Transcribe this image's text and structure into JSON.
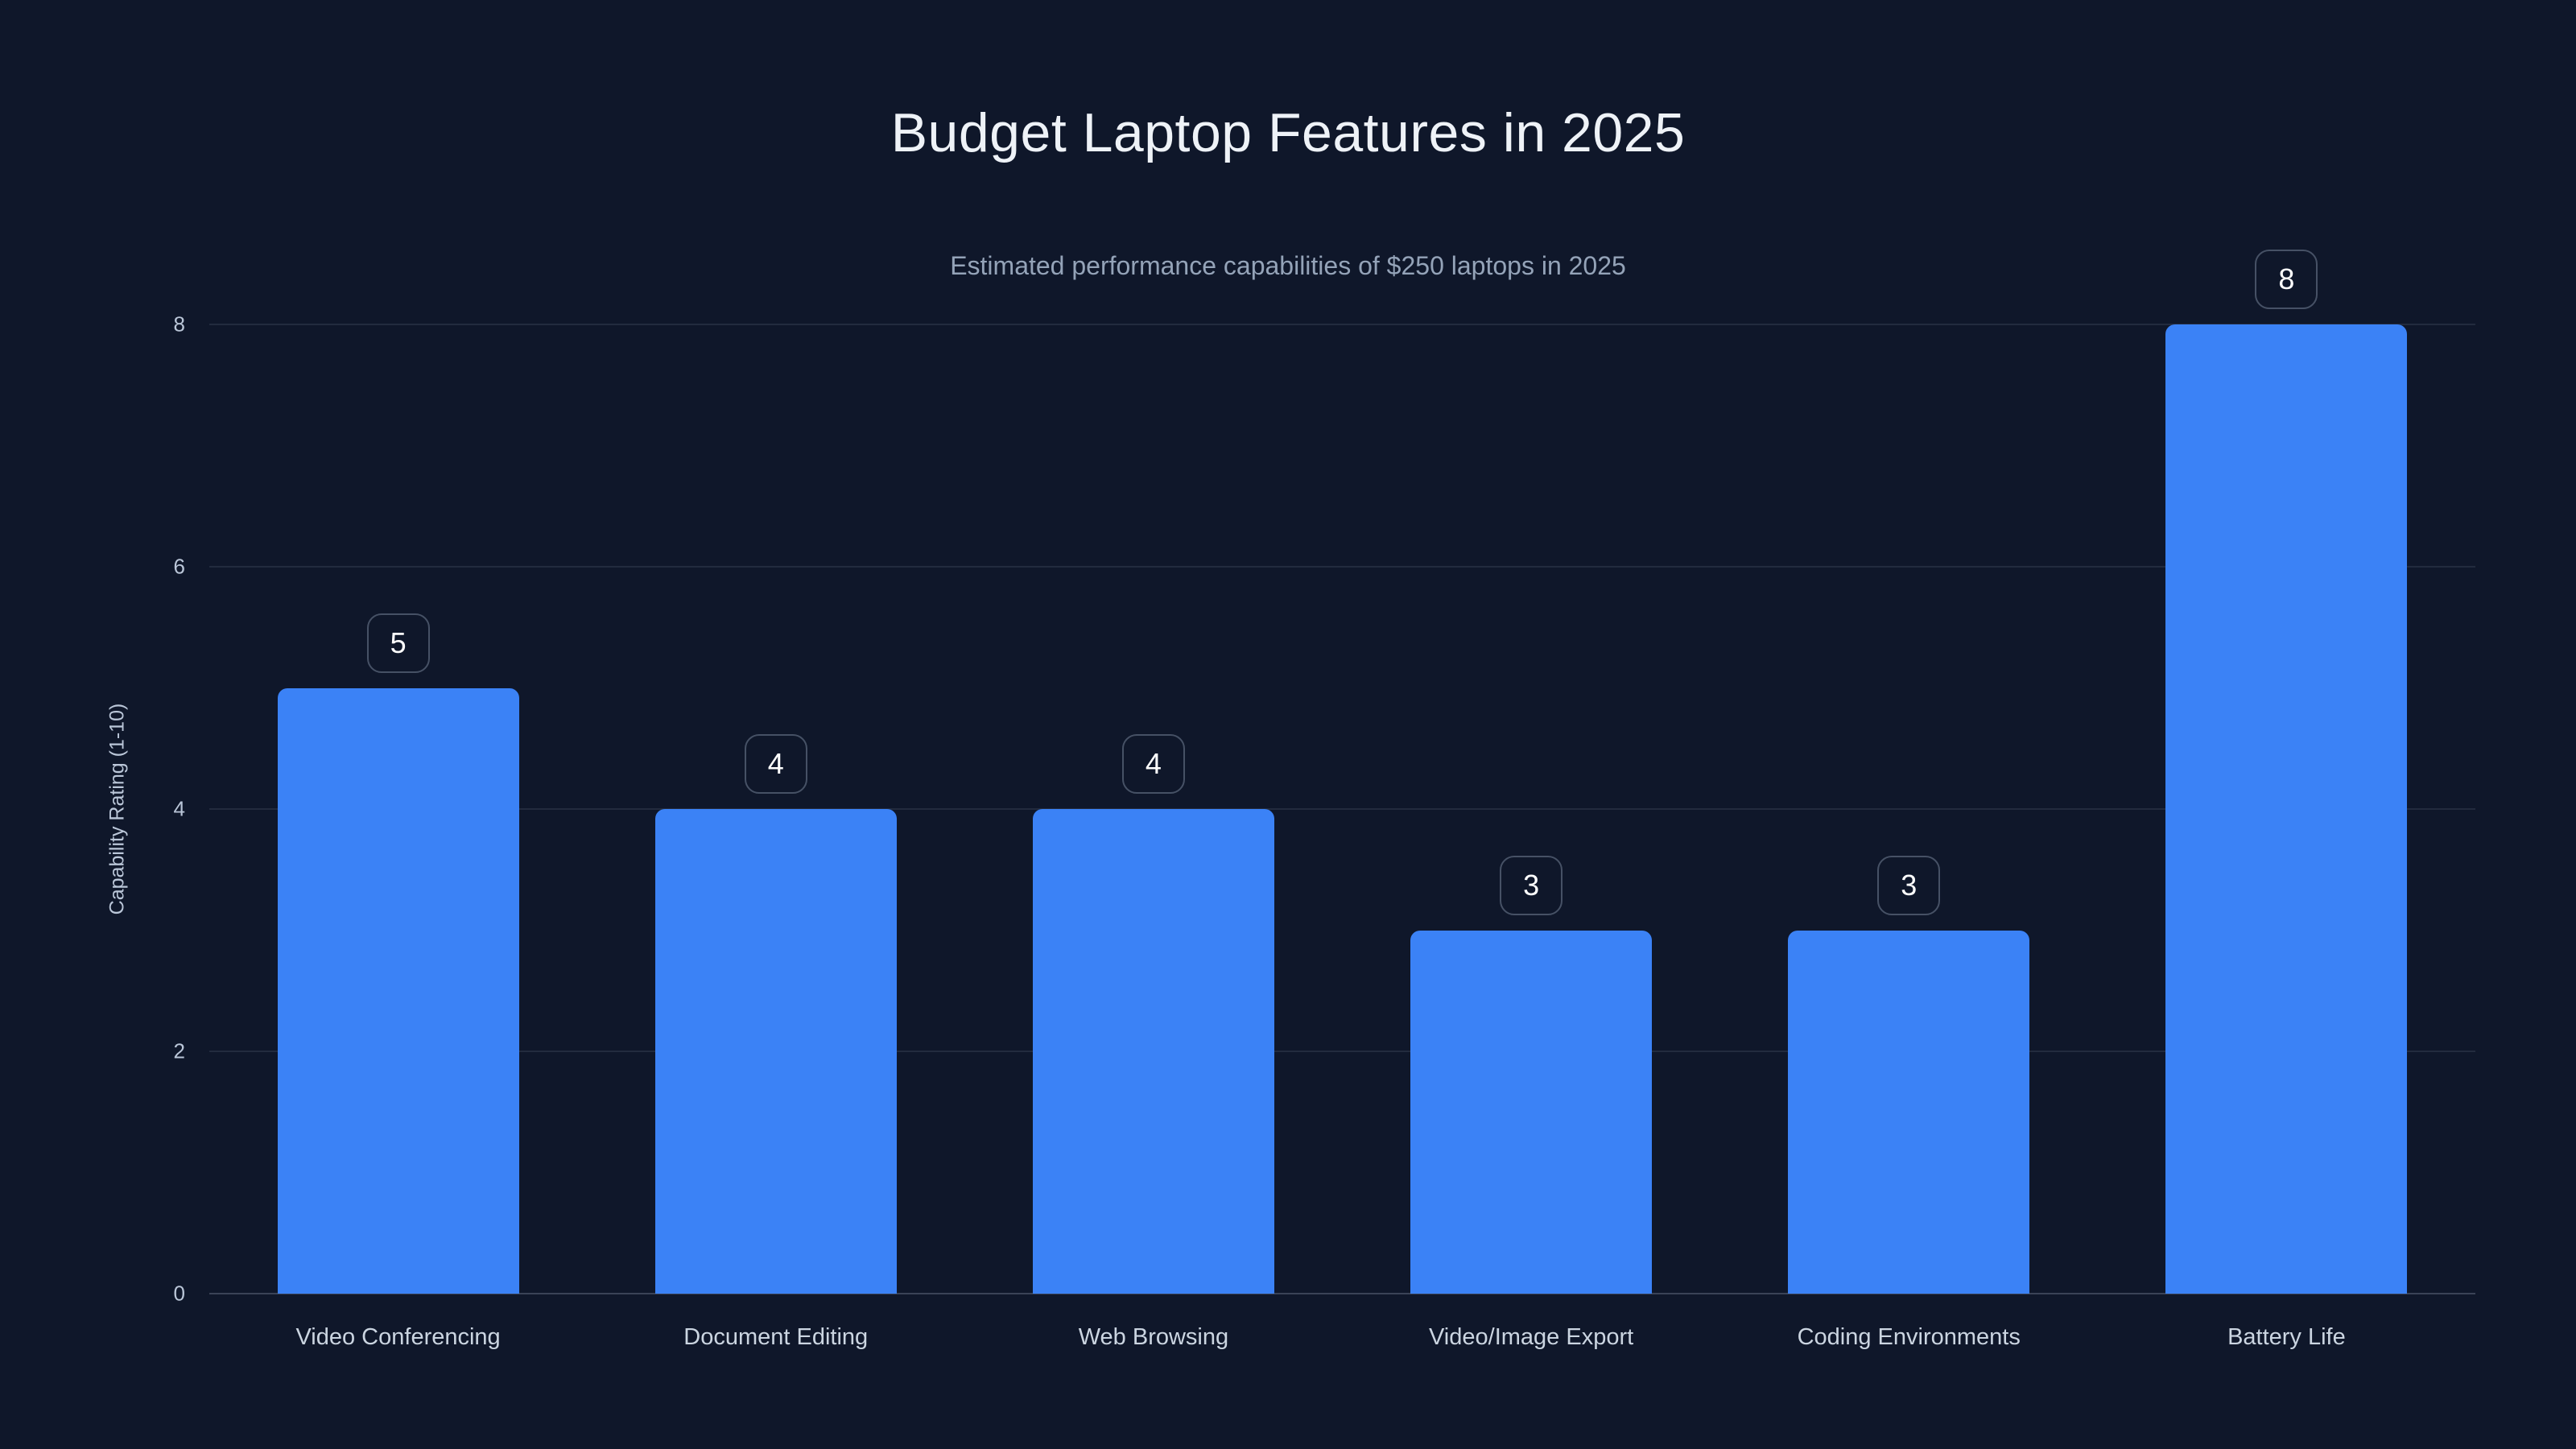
{
  "page": {
    "background": "#0f172a"
  },
  "chart_data": {
    "type": "bar",
    "title": "Budget Laptop Features in 2025",
    "subtitle": "Estimated performance capabilities of $250 laptops in 2025",
    "categories": [
      "Video Conferencing",
      "Document Editing",
      "Web Browsing",
      "Video/Image Export",
      "Coding Environments",
      "Battery Life"
    ],
    "values": [
      5,
      4,
      4,
      3,
      3,
      8
    ],
    "value_labels": [
      "5",
      "4",
      "4",
      "3",
      "3",
      "8"
    ],
    "xlabel": "",
    "ylabel": "Capability Rating (1-10)",
    "ylim": [
      0,
      8
    ],
    "yticks": [
      0,
      2,
      4,
      6,
      8
    ],
    "grid": "horizontal",
    "legend": "none",
    "colors": {
      "background": "#0f172a",
      "bar": "#3b82f6",
      "title": "#eef2f7",
      "subtitle": "#94a3b8",
      "axis_text": "#bac6d8",
      "category_text": "#cbd5e1",
      "gridline": "rgba(148,163,184,0.15)",
      "baseline": "rgba(148,163,184,0.32)",
      "badge_border": "rgba(148,163,184,0.42)",
      "badge_text": "#ffffff"
    }
  }
}
